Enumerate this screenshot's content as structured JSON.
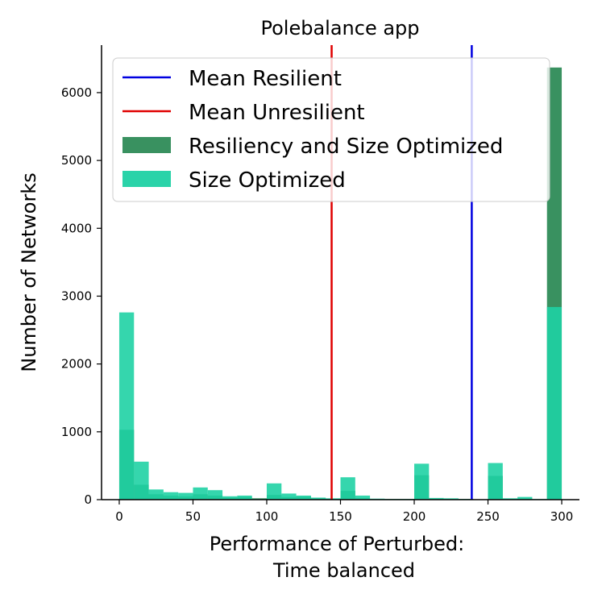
{
  "chart_data": {
    "type": "histogram",
    "title": "Polebalance app",
    "xlabel_line1": "Performance of Perturbed:",
    "xlabel_line2": "Time balanced",
    "ylabel": "Number of Networks",
    "xlim": [
      -12,
      312
    ],
    "ylim": [
      0,
      6700
    ],
    "xticks": [
      0,
      50,
      100,
      150,
      200,
      250,
      300
    ],
    "yticks": [
      0,
      1000,
      2000,
      3000,
      4000,
      5000,
      6000
    ],
    "bin_width": 10,
    "bin_starts": [
      0,
      10,
      20,
      30,
      40,
      50,
      60,
      70,
      80,
      90,
      100,
      110,
      120,
      130,
      140,
      150,
      160,
      170,
      180,
      190,
      200,
      210,
      220,
      230,
      240,
      250,
      260,
      270,
      280,
      290
    ],
    "series": [
      {
        "name": "Resiliency and Size Optimized",
        "color": "#2e8b57",
        "opacity": 0.95,
        "values": [
          1030,
          220,
          80,
          60,
          50,
          80,
          60,
          30,
          40,
          20,
          70,
          40,
          45,
          20,
          10,
          130,
          20,
          10,
          10,
          10,
          360,
          15,
          10,
          10,
          5,
          350,
          10,
          15,
          5,
          6370
        ]
      },
      {
        "name": "Size Optimized",
        "color": "#1fd1a4",
        "opacity": 0.9,
        "values": [
          2760,
          560,
          150,
          110,
          100,
          180,
          140,
          50,
          60,
          10,
          240,
          90,
          60,
          30,
          20,
          330,
          60,
          15,
          10,
          10,
          530,
          25,
          20,
          10,
          5,
          540,
          20,
          40,
          10,
          2840
        ]
      }
    ],
    "vlines": [
      {
        "name": "Mean Resilient",
        "x": 239,
        "color": "#0000e0"
      },
      {
        "name": "Mean Unresilient",
        "x": 144,
        "color": "#e00000"
      }
    ],
    "legend": {
      "position": "top-right",
      "entries": [
        {
          "label": "Mean Resilient",
          "kind": "line",
          "color": "#0000e0"
        },
        {
          "label": "Mean Unresilient",
          "kind": "line",
          "color": "#e00000"
        },
        {
          "label": "Resiliency and Size Optimized",
          "kind": "patch",
          "color": "#2e8b57"
        },
        {
          "label": "Size Optimized",
          "kind": "patch",
          "color": "#1fd1a4"
        }
      ]
    }
  }
}
